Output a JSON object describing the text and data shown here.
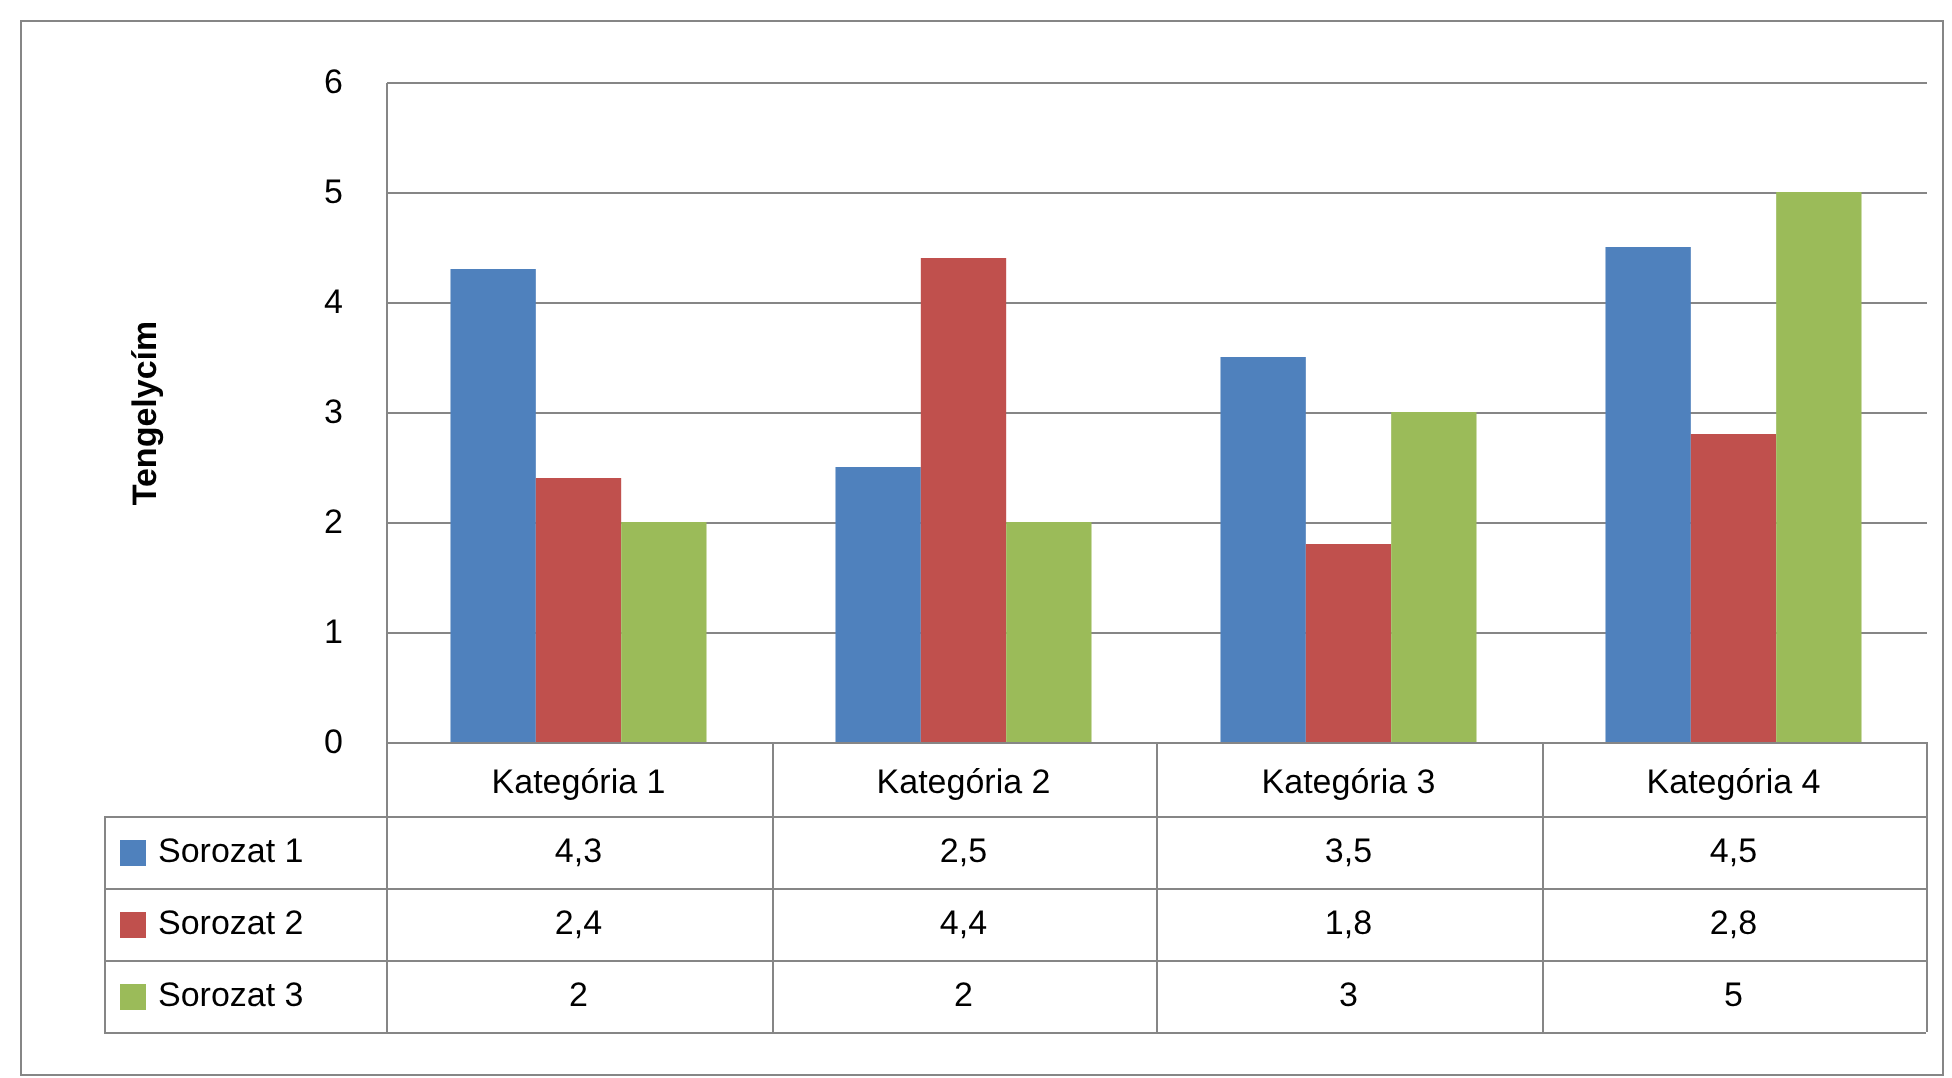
{
  "chart_data": {
    "type": "bar",
    "ylabel": "Tengelycím",
    "categories": [
      "Kategória 1",
      "Kategória 2",
      "Kategória 3",
      "Kategória 4"
    ],
    "series": [
      {
        "name": "Sorozat 1",
        "color": "#4f81bd",
        "values": [
          4.3,
          2.5,
          3.5,
          4.5
        ],
        "value_labels": [
          "4,3",
          "2,5",
          "3,5",
          "4,5"
        ]
      },
      {
        "name": "Sorozat 2",
        "color": "#c0504d",
        "values": [
          2.4,
          4.4,
          1.8,
          2.8
        ],
        "value_labels": [
          "2,4",
          "4,4",
          "1,8",
          "2,8"
        ]
      },
      {
        "name": "Sorozat 3",
        "color": "#9bbb59",
        "values": [
          2,
          2,
          3,
          5
        ],
        "value_labels": [
          "2",
          "2",
          "3",
          "5"
        ]
      }
    ],
    "ylim": [
      0,
      6
    ],
    "yticks": [
      0,
      1,
      2,
      3,
      4,
      5,
      6
    ],
    "grid": "y",
    "legend": "bottom"
  }
}
